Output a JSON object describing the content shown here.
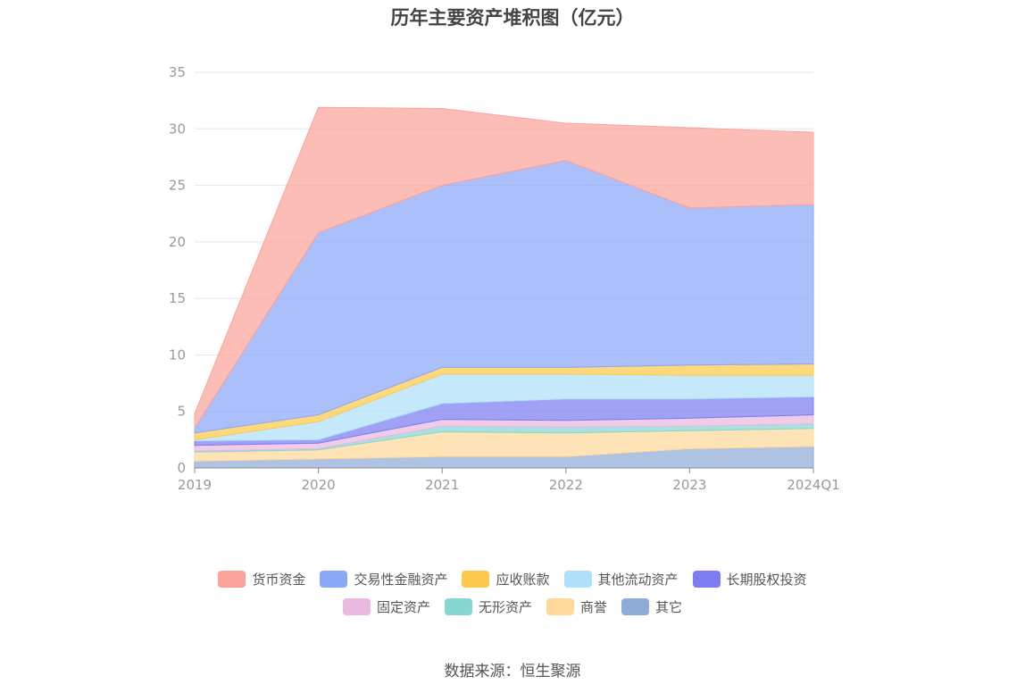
{
  "chart_data": {
    "type": "area",
    "stacked": true,
    "title": "历年主要资产堆积图（亿元）",
    "x": [
      "2019",
      "2020",
      "2021",
      "2022",
      "2023",
      "2024Q1"
    ],
    "ylim": [
      0,
      35
    ],
    "yticks": [
      0,
      5,
      10,
      15,
      20,
      25,
      30,
      35
    ],
    "grid": true,
    "legend_position": "bottom",
    "series": [
      {
        "name": "其它",
        "color": "#8fabd8",
        "values": [
          0.6,
          0.8,
          1.0,
          1.0,
          1.7,
          1.9
        ]
      },
      {
        "name": "商誉",
        "color": "#fdd89a",
        "values": [
          0.8,
          0.8,
          2.2,
          2.1,
          1.6,
          1.6
        ]
      },
      {
        "name": "无形资产",
        "color": "#86d7d2",
        "values": [
          0.1,
          0.1,
          0.5,
          0.5,
          0.4,
          0.4
        ]
      },
      {
        "name": "固定资产",
        "color": "#eab9e1",
        "values": [
          0.5,
          0.5,
          0.6,
          0.6,
          0.7,
          0.8
        ]
      },
      {
        "name": "长期股权投资",
        "color": "#7b7df0",
        "values": [
          0.4,
          0.3,
          1.4,
          1.9,
          1.7,
          1.6
        ]
      },
      {
        "name": "其他流动资产",
        "color": "#aee0fa",
        "values": [
          0.1,
          1.6,
          2.6,
          2.2,
          2.1,
          1.9
        ]
      },
      {
        "name": "应收账款",
        "color": "#fdc94a",
        "values": [
          0.6,
          0.6,
          0.6,
          0.6,
          0.9,
          1.0
        ]
      },
      {
        "name": "交易性金融资产",
        "color": "#8aa8f8",
        "values": [
          0.4,
          16.1,
          16.1,
          18.3,
          13.9,
          14.1
        ]
      },
      {
        "name": "货币资金",
        "color": "#fba39b",
        "values": [
          1.3,
          11.1,
          6.8,
          3.3,
          7.1,
          6.4
        ]
      }
    ],
    "legend_order": [
      "货币资金",
      "交易性金融资产",
      "应收账款",
      "其他流动资产",
      "长期股权投资",
      "固定资产",
      "无形资产",
      "商誉",
      "其它"
    ]
  },
  "source_text": "数据来源：恒生聚源"
}
